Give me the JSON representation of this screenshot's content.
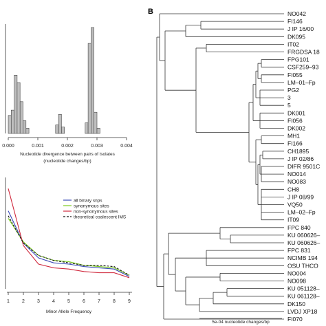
{
  "panel_b_label": "B",
  "chart_data": [
    {
      "type": "bar",
      "panel": "A-top",
      "xlabel": "Nucleotide divergence between pairs of isolates",
      "xlabel2": "(nucleotide changes/bp)",
      "xticks": [
        "0.000",
        "0.001",
        "0.002",
        "0.003",
        "0.004"
      ],
      "xlim": [
        0,
        0.004
      ],
      "bin_width": 0.0001,
      "bins": [
        {
          "x": 0.0,
          "value": 0.17
        },
        {
          "x": 0.0001,
          "value": 0.22
        },
        {
          "x": 0.0002,
          "value": 0.55
        },
        {
          "x": 0.0003,
          "value": 0.48
        },
        {
          "x": 0.0004,
          "value": 0.3
        },
        {
          "x": 0.0005,
          "value": 0.12
        },
        {
          "x": 0.0006,
          "value": 0.05
        },
        {
          "x": 0.0016,
          "value": 0.08
        },
        {
          "x": 0.0017,
          "value": 0.18
        },
        {
          "x": 0.0018,
          "value": 0.06
        },
        {
          "x": 0.0026,
          "value": 0.1
        },
        {
          "x": 0.0027,
          "value": 0.85
        },
        {
          "x": 0.0028,
          "value": 1.0
        },
        {
          "x": 0.0029,
          "value": 0.2
        },
        {
          "x": 0.003,
          "value": 0.05
        }
      ]
    },
    {
      "type": "line",
      "panel": "A-bottom",
      "xlabel": "Minor Allele Frequency",
      "x": [
        1,
        2,
        3,
        4,
        5,
        6,
        7,
        8,
        9
      ],
      "series": [
        {
          "name": "all binary snps",
          "color": "#3b4bb8",
          "dash": false,
          "values": [
            0.78,
            0.52,
            0.4,
            0.36,
            0.35,
            0.33,
            0.32,
            0.31,
            0.25
          ]
        },
        {
          "name": "synonymous sites",
          "color": "#7ccc1f",
          "dash": false,
          "values": [
            0.72,
            0.53,
            0.42,
            0.38,
            0.37,
            0.34,
            0.33,
            0.32,
            0.26
          ]
        },
        {
          "name": "non-synonymous sites",
          "color": "#d02a3e",
          "dash": false,
          "values": [
            0.96,
            0.5,
            0.35,
            0.32,
            0.31,
            0.29,
            0.28,
            0.28,
            0.24
          ]
        },
        {
          "name": "theoretical coalescent IMS",
          "color": "#111111",
          "dash": true,
          "values": [
            0.74,
            0.52,
            0.42,
            0.38,
            0.36,
            0.34,
            0.34,
            0.33,
            0.26
          ]
        }
      ],
      "ylim": [
        0.15,
        1.05
      ],
      "legend_position": "top-right"
    },
    {
      "type": "tree",
      "panel": "B",
      "scale_label": "5e-04 nucleotide changes/bp",
      "leaves": [
        "NO042",
        "FI146",
        "J IP 16/00",
        "DK095",
        "IT02",
        "FRGDSA 18",
        "FPG101",
        "CSF259–93",
        "FI055",
        "LM–01–Fp",
        "PG2",
        "3",
        "5",
        "DK001",
        "FI056",
        "DK002",
        "MH1",
        "FI166",
        "CH1895",
        "J IP 02/86",
        "DIFR 9501C",
        "NO014",
        "NO083",
        "CH8",
        "J IP 08/99",
        "VQ50",
        "LM–02–Fp",
        "IT09",
        "FPC 840",
        "KU 060626–",
        "KU 060626–",
        "FPC 831",
        "NCIMB 194",
        "OSU THCO",
        "NO004",
        "NO098",
        "KU 051128–",
        "KU 061128–",
        "DK150",
        "LVDJ XP18",
        "FI070"
      ]
    }
  ]
}
